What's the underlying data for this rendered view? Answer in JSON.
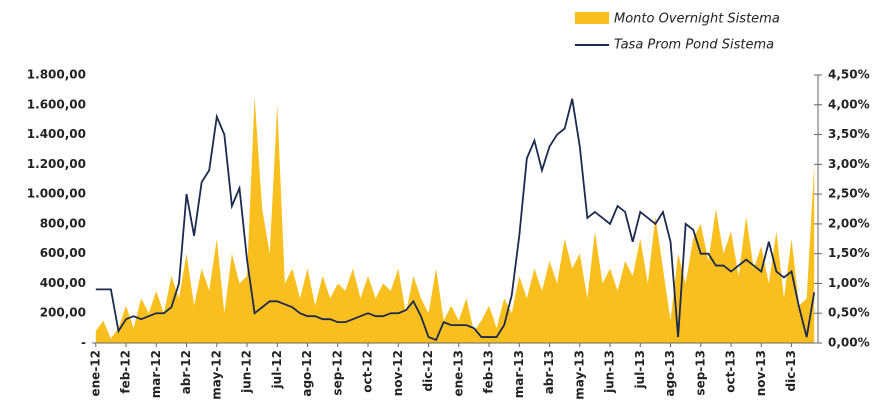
{
  "chart_data": {
    "type": "combo",
    "categories": [
      "ene-12",
      null,
      null,
      null,
      "feb-12",
      null,
      null,
      null,
      "mar-12",
      null,
      null,
      null,
      "abr-12",
      null,
      null,
      null,
      "may-12",
      null,
      null,
      null,
      "jun-12",
      null,
      null,
      null,
      "jul-12",
      null,
      null,
      null,
      "ago-12",
      null,
      null,
      null,
      "sep-12",
      null,
      null,
      null,
      "oct-12",
      null,
      null,
      null,
      "nov-12",
      null,
      null,
      null,
      "dic-12",
      null,
      null,
      null,
      "ene-13",
      null,
      null,
      null,
      "feb-13",
      null,
      null,
      null,
      "mar-13",
      null,
      null,
      null,
      "abr-13",
      null,
      null,
      null,
      "may-13",
      null,
      null,
      null,
      "jun-13",
      null,
      null,
      null,
      "jul-13",
      null,
      null,
      null,
      "ago-13",
      null,
      null,
      null,
      "sep-13",
      null,
      null,
      null,
      "oct-13",
      null,
      null,
      null,
      "nov-13",
      null,
      null,
      null,
      "dic-13",
      null,
      null,
      null
    ],
    "series": [
      {
        "name": "Monto Overnight Sistema",
        "type": "area",
        "color": "#f9bf1e",
        "values": [
          80,
          150,
          30,
          100,
          250,
          100,
          300,
          200,
          350,
          200,
          450,
          300,
          600,
          250,
          500,
          350,
          700,
          200,
          600,
          400,
          450,
          1650,
          900,
          600,
          1600,
          400,
          500,
          300,
          500,
          250,
          450,
          300,
          400,
          350,
          500,
          300,
          450,
          300,
          400,
          350,
          500,
          200,
          450,
          300,
          200,
          500,
          150,
          250,
          150,
          300,
          80,
          150,
          250,
          100,
          300,
          200,
          450,
          300,
          500,
          350,
          550,
          400,
          700,
          500,
          600,
          300,
          750,
          400,
          500,
          350,
          550,
          450,
          700,
          400,
          850,
          500,
          150,
          600,
          400,
          700,
          800,
          550,
          900,
          600,
          750,
          450,
          850,
          500,
          650,
          400,
          750,
          300,
          700,
          250,
          300,
          1200
        ]
      },
      {
        "name": "Tasa Prom Pond Sistema",
        "type": "line",
        "axis": "y2",
        "color": "#1b2a4e",
        "values": [
          0.9,
          0.9,
          0.9,
          0.2,
          0.4,
          0.45,
          0.4,
          0.45,
          0.5,
          0.5,
          0.6,
          1.0,
          2.5,
          1.8,
          2.7,
          2.9,
          3.8,
          3.5,
          2.3,
          2.6,
          1.4,
          0.5,
          0.6,
          0.7,
          0.7,
          0.65,
          0.6,
          0.5,
          0.45,
          0.45,
          0.4,
          0.4,
          0.35,
          0.35,
          0.4,
          0.45,
          0.5,
          0.45,
          0.45,
          0.5,
          0.5,
          0.55,
          0.7,
          0.45,
          0.1,
          0.05,
          0.35,
          0.3,
          0.3,
          0.3,
          0.25,
          0.1,
          0.1,
          0.1,
          0.3,
          0.8,
          1.8,
          3.1,
          3.4,
          2.9,
          3.3,
          3.5,
          3.6,
          4.1,
          3.3,
          2.1,
          2.2,
          2.1,
          2.0,
          2.3,
          2.2,
          1.7,
          2.2,
          2.1,
          2.0,
          2.2,
          1.7,
          0.1,
          2.0,
          1.9,
          1.5,
          1.5,
          1.3,
          1.3,
          1.2,
          1.3,
          1.4,
          1.3,
          1.2,
          1.7,
          1.2,
          1.1,
          1.2,
          0.6,
          0.1,
          0.85
        ]
      }
    ],
    "ylim": [
      0,
      1800
    ],
    "yticks": [
      {
        "value": 0,
        "label": "-"
      },
      {
        "value": 200,
        "label": "200,00"
      },
      {
        "value": 400,
        "label": "400,00"
      },
      {
        "value": 600,
        "label": "600,00"
      },
      {
        "value": 800,
        "label": "800,00"
      },
      {
        "value": 1000,
        "label": "1.000,00"
      },
      {
        "value": 1200,
        "label": "1.200,00"
      },
      {
        "value": 1400,
        "label": "1.400,00"
      },
      {
        "value": 1600,
        "label": "1.600,00"
      },
      {
        "value": 1800,
        "label": "1.800,00"
      }
    ],
    "y2lim": [
      0,
      4.5
    ],
    "y2ticks": [
      {
        "value": 0,
        "label": "0,00%"
      },
      {
        "value": 0.5,
        "label": "0,50%"
      },
      {
        "value": 1,
        "label": "1,00%"
      },
      {
        "value": 1.5,
        "label": "1,50%"
      },
      {
        "value": 2,
        "label": "2,00%"
      },
      {
        "value": 2.5,
        "label": "2,50%"
      },
      {
        "value": 3,
        "label": "3,00%"
      },
      {
        "value": 3.5,
        "label": "3,50%"
      },
      {
        "value": 4,
        "label": "4,00%"
      },
      {
        "value": 4.5,
        "label": "4,50%"
      }
    ]
  }
}
